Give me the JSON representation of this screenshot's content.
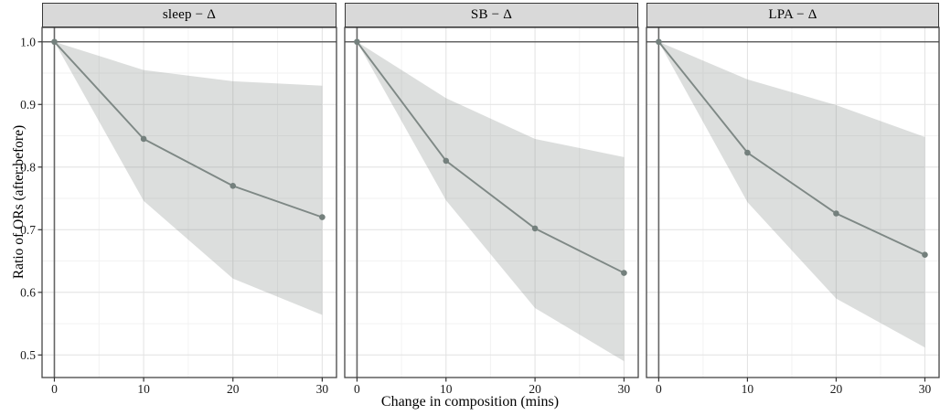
{
  "figure": {
    "kind": "faceted-line-chart-with-confidence-ribbons"
  },
  "colors": {
    "background": "#ffffff",
    "strip_fill": "#d9d9d9",
    "strip_border": "#383838",
    "panel_border": "#454545",
    "grid_major": "#e4e4e4",
    "grid_minor": "#f2f2f2",
    "reference_line": "#656565",
    "series_line": "#7e8885",
    "point": "#74807d",
    "ribbon": "rgba(125,134,131,0.27)",
    "tick": "#333333"
  },
  "chart_data": {
    "type": "line",
    "xlabel": "Change in composition (mins)",
    "ylabel": "Ratio of ORs (after:before)",
    "legend": "none",
    "grid": "major+minor",
    "x": [
      0,
      10,
      20,
      30
    ],
    "x_tick_labels": [
      "0",
      "10",
      "20",
      "30"
    ],
    "y_tick_labels": [
      "1.0",
      "0.9",
      "0.8",
      "0.7",
      "0.6",
      "0.5"
    ],
    "x_major": [
      0,
      10,
      20,
      30
    ],
    "x_minor": [
      5,
      15,
      25
    ],
    "y_major": [
      1.0,
      0.9,
      0.8,
      0.7,
      0.6,
      0.5
    ],
    "y_minor": [
      0.95,
      0.85,
      0.75,
      0.65,
      0.55
    ],
    "xlim": [
      -1.38,
      31.6
    ],
    "ylim": [
      0.464,
      1.023
    ],
    "reference_h": 1.0,
    "reference_v": 0,
    "facets": [
      {
        "label": "sleep − Δ",
        "x": [
          0,
          10,
          20,
          30
        ],
        "mean": [
          1.0,
          0.845,
          0.77,
          0.72
        ],
        "lower": [
          1.0,
          0.746,
          0.622,
          0.564
        ],
        "upper": [
          1.0,
          0.955,
          0.937,
          0.93
        ]
      },
      {
        "label": "SB − Δ",
        "x": [
          0,
          10,
          20,
          30
        ],
        "mean": [
          1.0,
          0.81,
          0.702,
          0.631
        ],
        "lower": [
          1.0,
          0.747,
          0.575,
          0.49
        ],
        "upper": [
          1.0,
          0.91,
          0.845,
          0.816
        ]
      },
      {
        "label": "LPA − Δ",
        "x": [
          0,
          10,
          20,
          30
        ],
        "mean": [
          1.0,
          0.823,
          0.726,
          0.66
        ],
        "lower": [
          1.0,
          0.744,
          0.59,
          0.512
        ],
        "upper": [
          1.0,
          0.94,
          0.899,
          0.848
        ]
      }
    ]
  }
}
